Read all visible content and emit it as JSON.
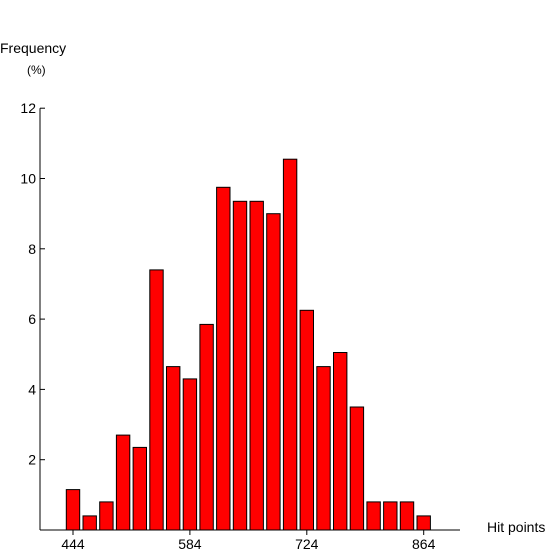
{
  "chart_data": {
    "type": "bar",
    "ylabel_line1": "Frequency",
    "ylabel_line2": "(%)",
    "xlabel": "Hit points",
    "x_ticks": [
      444,
      584,
      724,
      864
    ],
    "y_ticks": [
      2,
      4,
      6,
      8,
      10,
      12
    ],
    "ylim": [
      0,
      12
    ],
    "bin_width": 20,
    "x": [
      444,
      464,
      484,
      504,
      524,
      544,
      564,
      584,
      604,
      624,
      644,
      664,
      684,
      704,
      724,
      744,
      764,
      784,
      804,
      824,
      844,
      864
    ],
    "values": [
      1.15,
      0.4,
      0.8,
      2.7,
      2.35,
      7.4,
      4.65,
      4.3,
      5.85,
      9.75,
      9.35,
      9.35,
      9.0,
      10.55,
      6.25,
      4.65,
      5.05,
      3.5,
      0.8,
      0.8,
      0.8,
      0.4
    ],
    "bar_color": "#ff0000",
    "grid": false
  }
}
